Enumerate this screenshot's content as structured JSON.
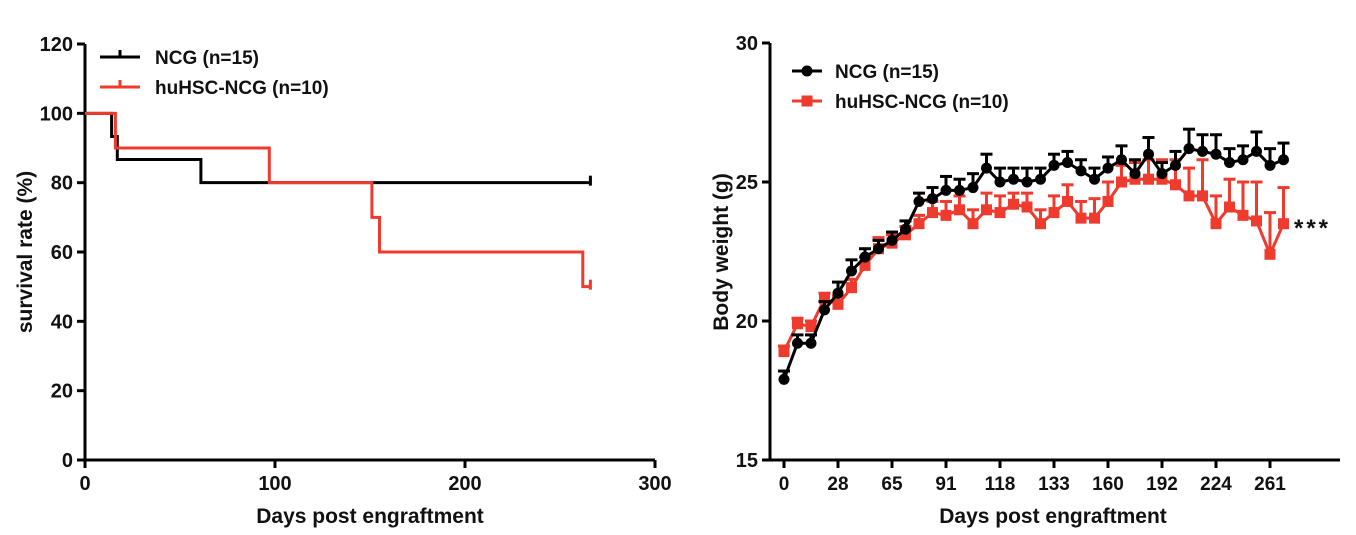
{
  "chart_data": [
    {
      "type": "line",
      "subtype": "kaplan-meier step",
      "xlabel": "Days post engraftment",
      "ylabel": "survival rate (%)",
      "xlim": [
        0,
        300
      ],
      "ylim": [
        0,
        120
      ],
      "xticks": [
        "0",
        "100",
        "200",
        "300"
      ],
      "yticks": [
        "0",
        "20",
        "40",
        "60",
        "80",
        "100",
        "120"
      ],
      "legend_position": "top-left",
      "grid": false,
      "series": [
        {
          "name": "NCG (n=15)",
          "color": "#000000",
          "steps": [
            [
              0,
              100
            ],
            [
              14,
              93.3
            ],
            [
              17,
              86.7
            ],
            [
              61,
              80
            ],
            [
              266,
              80
            ]
          ]
        },
        {
          "name": "huHSC-NCG (n=10)",
          "color": "#ee3b2e",
          "steps": [
            [
              0,
              100
            ],
            [
              16,
              90
            ],
            [
              97,
              80
            ],
            [
              151,
              70
            ],
            [
              155,
              60
            ],
            [
              262,
              50
            ],
            [
              266,
              50
            ]
          ]
        }
      ]
    },
    {
      "type": "line",
      "subtype": "mean with error bars",
      "xlabel": "Days post engraftment",
      "ylabel": "Body weight (g)",
      "ylim": [
        15,
        30
      ],
      "yticks": [
        "15",
        "20",
        "25",
        "30"
      ],
      "x_tick_labels": [
        "0",
        "28",
        "65",
        "91",
        "118",
        "133",
        "160",
        "192",
        "224",
        "261"
      ],
      "x_tick_every": 4,
      "legend_position": "top-left",
      "grid": false,
      "annotation": "***",
      "series": [
        {
          "name": "NCG (n=15)",
          "color": "#000000",
          "marker": "circle",
          "values": [
            17.9,
            19.2,
            19.2,
            20.4,
            21.0,
            21.8,
            22.3,
            22.6,
            22.9,
            23.3,
            24.3,
            24.4,
            24.7,
            24.7,
            24.8,
            25.5,
            25.0,
            25.1,
            25.0,
            25.1,
            25.6,
            25.7,
            25.4,
            25.1,
            25.5,
            25.8,
            25.3,
            26.0,
            25.3,
            25.6,
            26.2,
            26.1,
            26.0,
            25.7,
            25.8,
            26.1,
            25.6,
            25.8
          ],
          "error": [
            0.3,
            0.3,
            0.3,
            0.3,
            0.4,
            0.4,
            0.3,
            0.3,
            0.3,
            0.3,
            0.3,
            0.4,
            0.5,
            0.4,
            0.5,
            0.5,
            0.5,
            0.4,
            0.5,
            0.4,
            0.4,
            0.4,
            0.4,
            0.4,
            0.4,
            0.5,
            0.5,
            0.6,
            0.4,
            0.5,
            0.7,
            0.6,
            0.7,
            0.5,
            0.5,
            0.7,
            0.6,
            0.6
          ]
        },
        {
          "name": "huHSC-NCG (n=10)",
          "color": "#ee3b2e",
          "marker": "square",
          "values": [
            18.9,
            19.9,
            19.8,
            20.8,
            20.6,
            21.2,
            22.0,
            22.6,
            22.8,
            23.1,
            23.5,
            23.9,
            23.8,
            24.0,
            23.5,
            24.0,
            23.9,
            24.2,
            24.1,
            23.5,
            23.9,
            24.3,
            23.7,
            23.7,
            24.3,
            25.0,
            25.1,
            25.1,
            25.1,
            24.9,
            24.5,
            24.5,
            23.5,
            24.1,
            23.8,
            23.6,
            22.4,
            23.5
          ],
          "error": [
            0.2,
            0.2,
            0.2,
            0.2,
            0.3,
            0.3,
            0.3,
            0.4,
            0.3,
            0.3,
            0.3,
            0.4,
            0.5,
            0.5,
            0.5,
            0.6,
            0.6,
            0.4,
            0.5,
            0.5,
            0.6,
            0.6,
            0.6,
            0.7,
            0.7,
            0.6,
            0.6,
            0.7,
            0.7,
            0.9,
            1.0,
            1.3,
            1.0,
            1.0,
            1.2,
            1.4,
            1.5,
            1.3
          ]
        }
      ]
    }
  ]
}
